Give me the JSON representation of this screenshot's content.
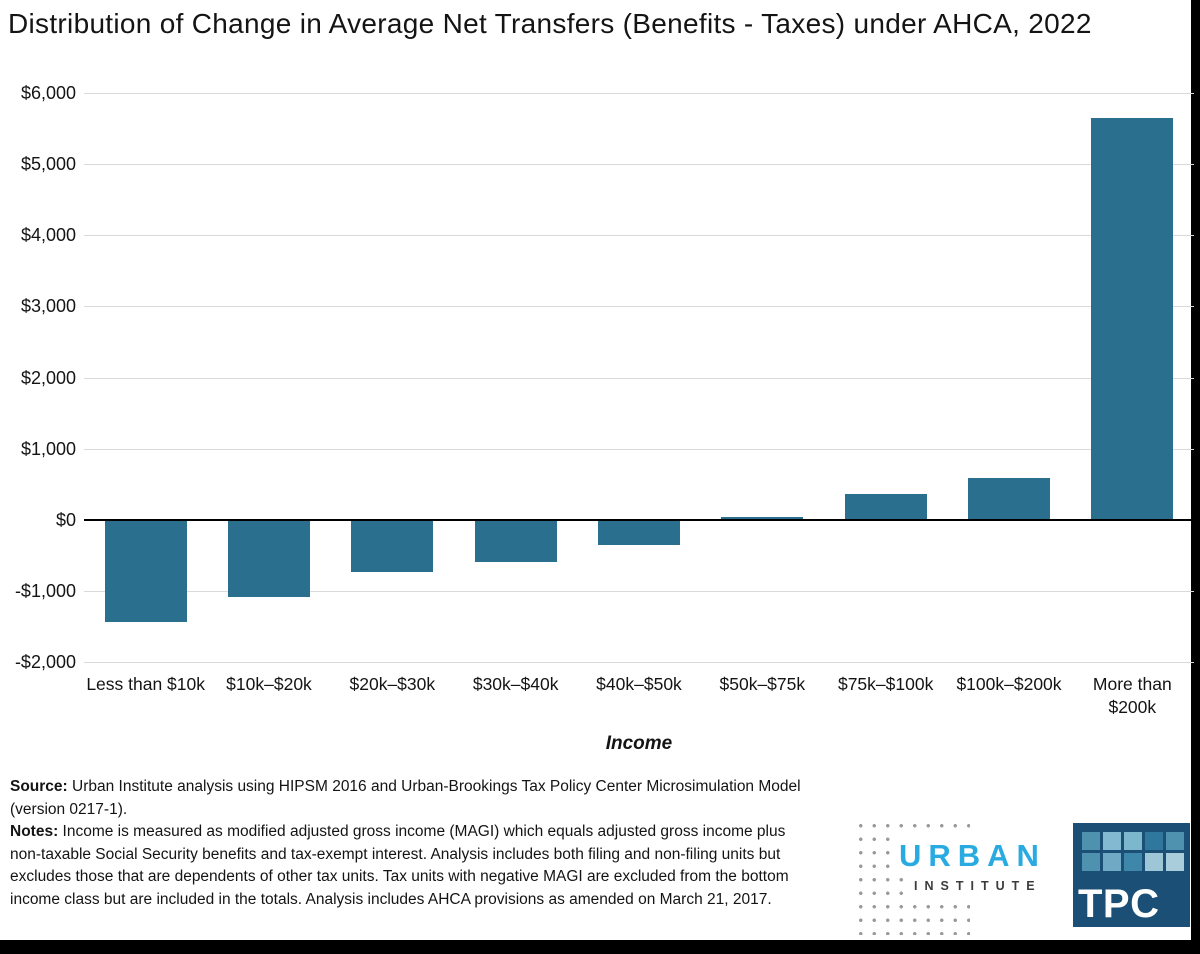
{
  "title": "Distribution of Change in Average Net Transfers (Benefits - Taxes) under AHCA, 2022",
  "chart_data": {
    "type": "bar",
    "title": "Distribution of Change in Average Net Transfers (Benefits - Taxes) under AHCA, 2022",
    "categories": [
      "Less than $10k",
      "$10k–$20k",
      "$20k–$30k",
      "$30k–$40k",
      "$40k–$50k",
      "$50k–$75k",
      "$75k–$100k",
      "$100k–$200k",
      "More than $200k"
    ],
    "values": [
      -1440,
      -1080,
      -740,
      -590,
      -360,
      40,
      360,
      590,
      5650
    ],
    "xlabel": "Income",
    "ylabel": "",
    "ylim": [
      -2000,
      6000
    ],
    "yticks": [
      {
        "value": 6000,
        "label": "$6,000"
      },
      {
        "value": 5000,
        "label": "$5,000"
      },
      {
        "value": 4000,
        "label": "$4,000"
      },
      {
        "value": 3000,
        "label": "$3,000"
      },
      {
        "value": 2000,
        "label": "$2,000"
      },
      {
        "value": 1000,
        "label": "$1,000"
      },
      {
        "value": 0,
        "label": "$0"
      },
      {
        "value": -1000,
        "label": "-$1,000"
      },
      {
        "value": -2000,
        "label": "-$2,000"
      }
    ],
    "grid": true,
    "legend_position": "none",
    "bar_color": "#2A6F8E",
    "gridline_color": "#d9d9d9",
    "zeroline_color": "#000000"
  },
  "footer": {
    "source_label": "Source:",
    "source_text": " Urban Institute analysis using HIPSM 2016 and Urban-Brookings Tax Policy Center Microsimulation Model (version 0217-1).",
    "notes_label": "Notes:",
    "notes_text": " Income is measured as modified adjusted gross income (MAGI) which equals adjusted gross income plus non-taxable Social Security benefits and tax-exempt interest. Analysis includes both filing and non-filing units but excludes those that are dependents of other tax units. Tax units with negative MAGI are excluded from the bottom income class but are included in the totals. Analysis includes AHCA provisions as amended on March 21, 2017."
  },
  "logos": {
    "urban": {
      "word": "URBAN",
      "subword": "INSTITUTE",
      "word_color": "#29ABE2",
      "sub_color": "#3C3C3C",
      "dot_color": "#9A9A9A"
    },
    "tpc": {
      "label": "TPC",
      "bg_color": "#1C4F76",
      "square_colors": [
        "#4E92B0",
        "#83BAD1",
        "#7DB7CE",
        "#2F779D",
        "#4E92B0",
        "#4E92B0",
        "#6FA9C4",
        "#3F87AA",
        "#9DC6D7",
        "#A9CDDA"
      ]
    }
  }
}
